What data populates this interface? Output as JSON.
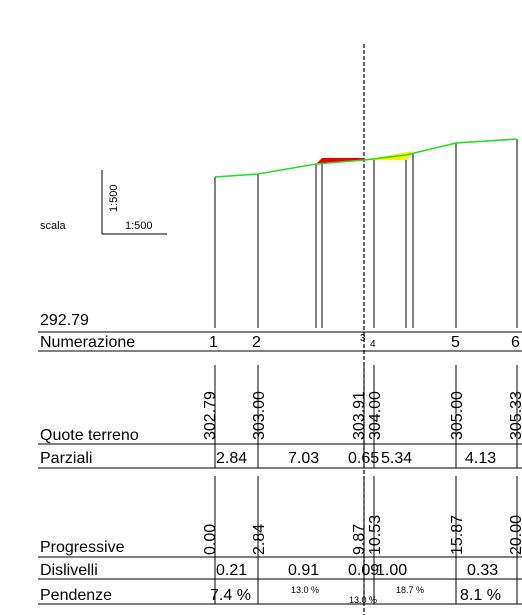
{
  "scale": {
    "label": "scala",
    "vertical": "1:500",
    "horizontal": "1:500"
  },
  "datum": "292.79",
  "rows": {
    "numerazione": "Numerazione",
    "quote_terreno": "Quote terreno",
    "parziali": "Parziali",
    "progressive": "Progressive",
    "dislivelli": "Dislivelli",
    "pendenze": "Pendenze"
  },
  "sections": [
    {
      "num": "1",
      "quota": "302.79",
      "progressiva": "0.00"
    },
    {
      "num": "2",
      "quota": "303.00",
      "progressiva": "2.84"
    },
    {
      "num": "3",
      "quota": "303.91",
      "progressiva": "9.87"
    },
    {
      "num": "4",
      "quota": "304.00",
      "progressiva": "10.53"
    },
    {
      "num": "5",
      "quota": "305.00",
      "progressiva": "15.87"
    },
    {
      "num": "6",
      "quota": "305.33",
      "progressiva": "20.00"
    }
  ],
  "parziali": [
    "2.84",
    "7.03",
    "0.65",
    "5.34",
    "4.13"
  ],
  "dislivelli": [
    "0.21",
    "0.91",
    "0.09",
    "1.00",
    "0.33"
  ],
  "pendenze": [
    "7.4 %",
    "13.0 %",
    "13.0 %",
    "18.7 %",
    "8.1 %"
  ],
  "colors": {
    "terrain_line": "#22dd22",
    "cut_fill": "#ee0000",
    "fill_fill": "#ffee00",
    "axis_line": "#000000"
  }
}
